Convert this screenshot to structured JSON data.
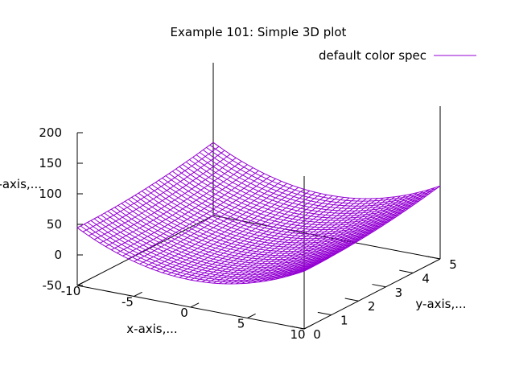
{
  "chart_data": {
    "type": "surface",
    "title": "Example 101: Simple 3D plot",
    "function": "z = (x*x - 1) / 2 + y*y - 5",
    "legend": {
      "label": "default color spec",
      "position": "top-right",
      "color": "#9400d3"
    },
    "xlabel": "x-axis,...",
    "ylabel": "y-axis,...",
    "zlabel": "z-axis,...",
    "xlim": [
      -10,
      10
    ],
    "ylim": [
      0,
      5
    ],
    "zlim": [
      -50,
      200
    ],
    "xticks": [
      "-10",
      "-5",
      "0",
      "5",
      "10"
    ],
    "yticks": [
      "0",
      "1",
      "2",
      "3",
      "4",
      "5"
    ],
    "zticks": [
      "200",
      "150",
      "100",
      "50",
      "0",
      "-50"
    ],
    "mesh_color": "#9400d3"
  }
}
